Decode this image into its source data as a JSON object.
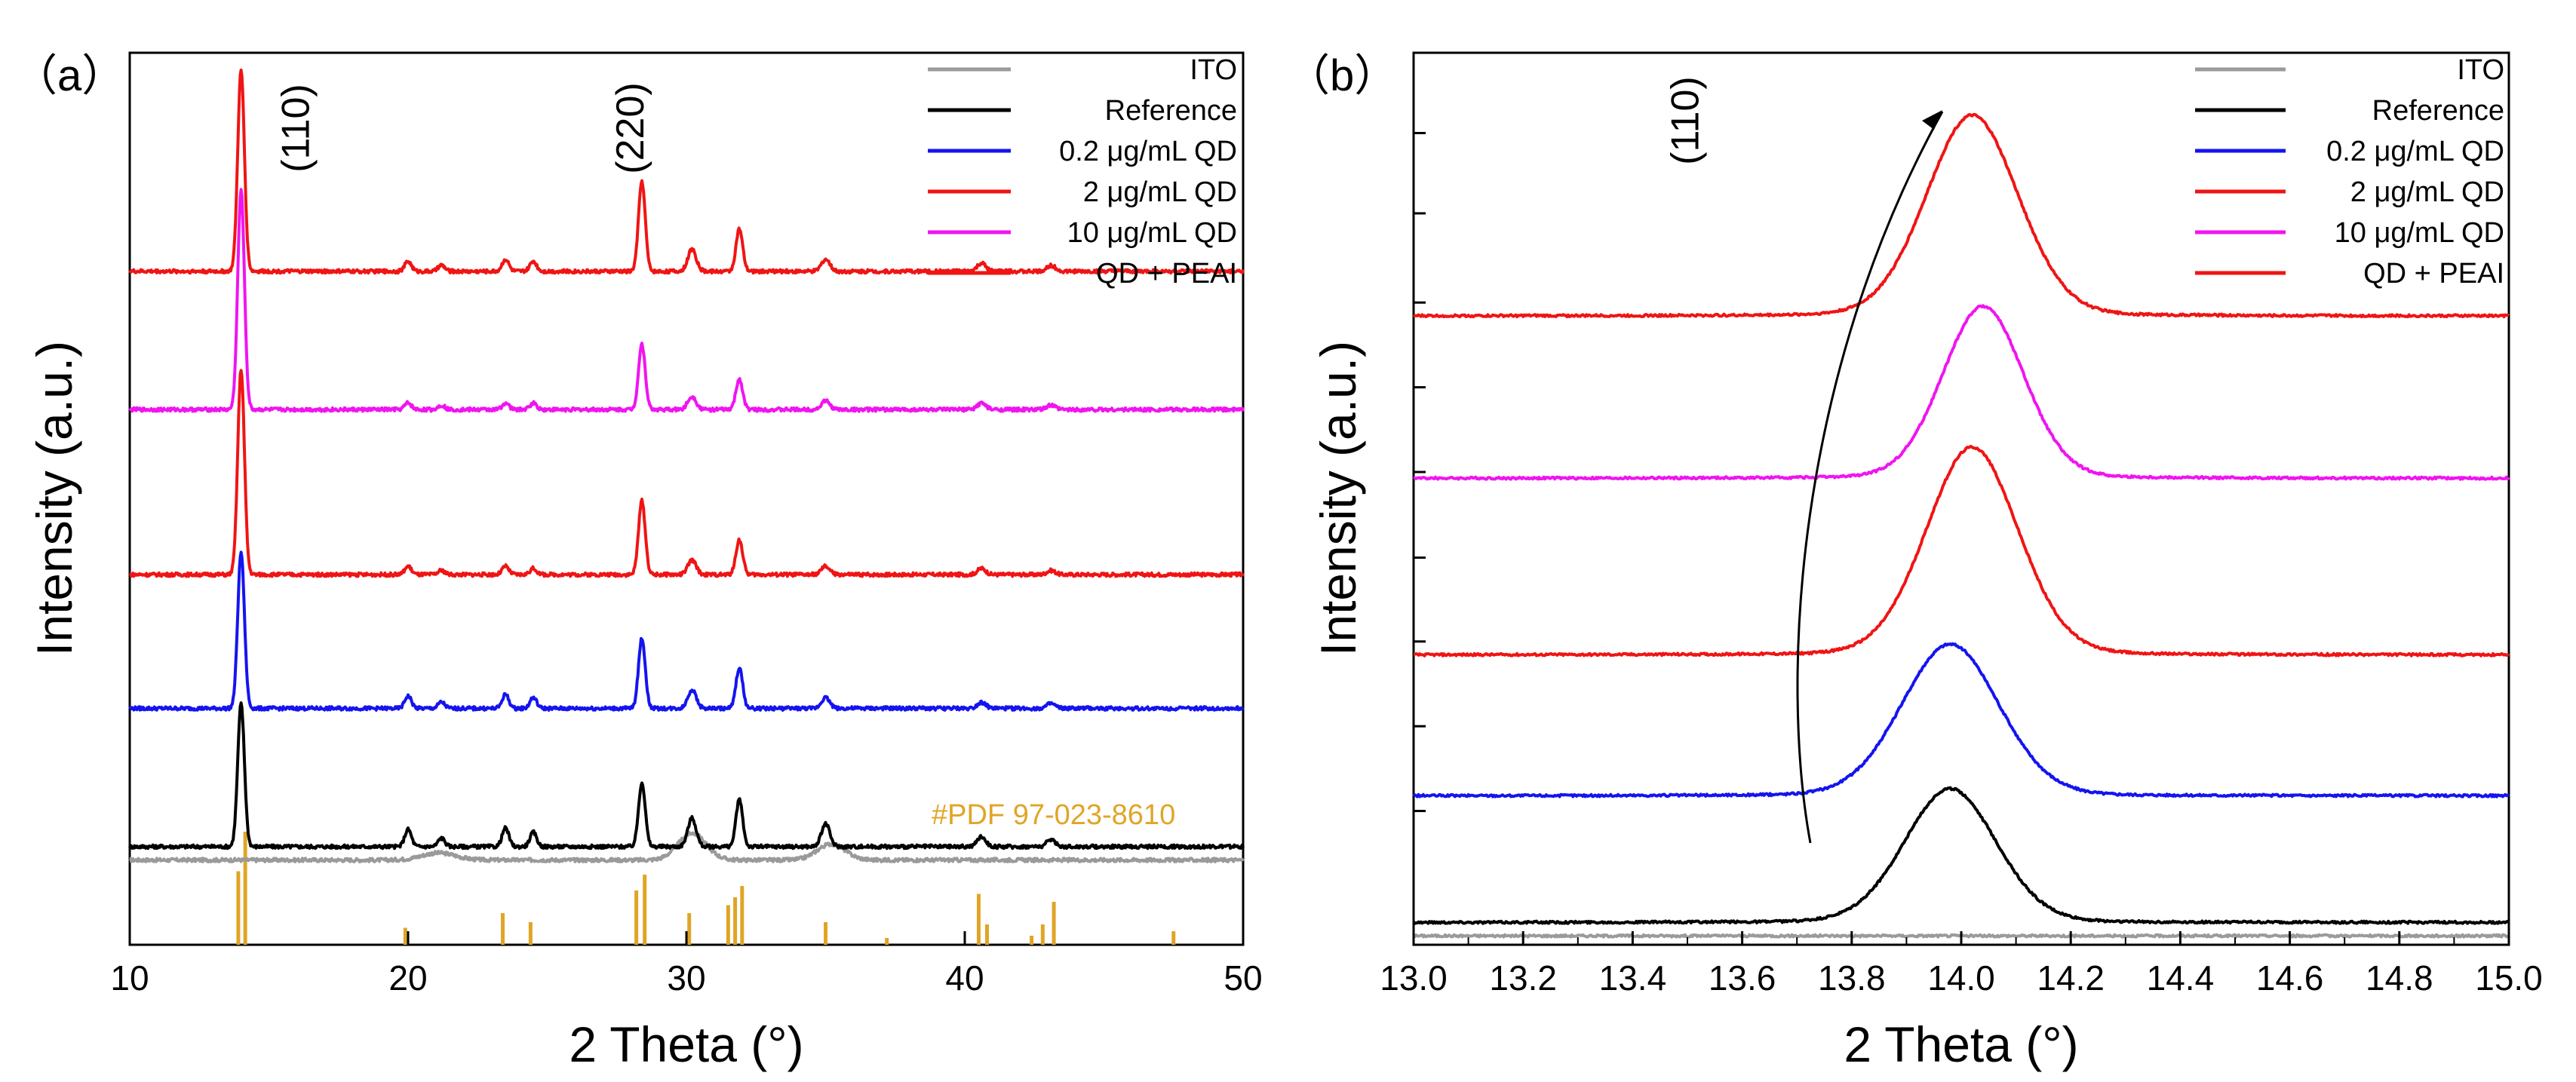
{
  "chart_data": [
    {
      "panel_label": "（a）",
      "type": "line",
      "xlabel": "2 Theta (°)",
      "ylabel": "Intensity (a.u.)",
      "xlim": [
        10,
        50
      ],
      "xticks": [
        "10",
        "20",
        "30",
        "40",
        "50"
      ],
      "yticks_labeled": false,
      "peak_labels": [
        {
          "text": "(110)",
          "x": 14.0
        },
        {
          "text": "(220)",
          "x": 28.4
        }
      ],
      "reference_pattern": {
        "label": "#PDF 97-023-8610",
        "color": "#e0a526",
        "sticks": [
          {
            "x": 13.9,
            "h": 0.65
          },
          {
            "x": 14.15,
            "h": 1.0
          },
          {
            "x": 19.9,
            "h": 0.15
          },
          {
            "x": 23.4,
            "h": 0.28
          },
          {
            "x": 24.4,
            "h": 0.2
          },
          {
            "x": 28.2,
            "h": 0.48
          },
          {
            "x": 28.5,
            "h": 0.62
          },
          {
            "x": 30.1,
            "h": 0.28
          },
          {
            "x": 31.5,
            "h": 0.35
          },
          {
            "x": 31.75,
            "h": 0.42
          },
          {
            "x": 32.0,
            "h": 0.52
          },
          {
            "x": 35.0,
            "h": 0.2
          },
          {
            "x": 37.2,
            "h": 0.06
          },
          {
            "x": 40.5,
            "h": 0.45
          },
          {
            "x": 40.8,
            "h": 0.18
          },
          {
            "x": 42.4,
            "h": 0.08
          },
          {
            "x": 42.8,
            "h": 0.18
          },
          {
            "x": 43.2,
            "h": 0.38
          },
          {
            "x": 47.5,
            "h": 0.12
          }
        ]
      },
      "series": [
        {
          "name": "ITO",
          "color": "#9a9a9a",
          "baseline": 0.095,
          "scale": 0.0,
          "peaks": [
            {
              "x": 21.1,
              "h": 0.008,
              "w": 0.6
            },
            {
              "x": 30.2,
              "h": 0.03,
              "w": 0.5
            },
            {
              "x": 35.2,
              "h": 0.018,
              "w": 0.5
            }
          ]
        },
        {
          "name": "Reference",
          "color": "#000000",
          "baseline": 0.11,
          "scale": 0.16,
          "peaks": [
            {
              "x": 14.0,
              "h": 1.0,
              "w": 0.12
            },
            {
              "x": 20.0,
              "h": 0.12,
              "w": 0.12
            },
            {
              "x": 21.2,
              "h": 0.06,
              "w": 0.12
            },
            {
              "x": 23.5,
              "h": 0.13,
              "w": 0.12
            },
            {
              "x": 24.5,
              "h": 0.1,
              "w": 0.12
            },
            {
              "x": 28.4,
              "h": 0.45,
              "w": 0.12
            },
            {
              "x": 30.2,
              "h": 0.2,
              "w": 0.15
            },
            {
              "x": 31.9,
              "h": 0.33,
              "w": 0.12
            },
            {
              "x": 35.0,
              "h": 0.16,
              "w": 0.15
            },
            {
              "x": 40.6,
              "h": 0.07,
              "w": 0.15
            },
            {
              "x": 43.1,
              "h": 0.05,
              "w": 0.15
            }
          ]
        },
        {
          "name": "0.2 μg/mL  QD",
          "color": "#1414f0",
          "baseline": 0.265,
          "scale": 0.175,
          "peaks": [
            {
              "x": 14.0,
              "h": 1.0,
              "w": 0.12
            },
            {
              "x": 20.0,
              "h": 0.08,
              "w": 0.12
            },
            {
              "x": 21.2,
              "h": 0.04,
              "w": 0.12
            },
            {
              "x": 23.5,
              "h": 0.09,
              "w": 0.12
            },
            {
              "x": 24.5,
              "h": 0.07,
              "w": 0.12
            },
            {
              "x": 28.4,
              "h": 0.45,
              "w": 0.12
            },
            {
              "x": 30.2,
              "h": 0.12,
              "w": 0.15
            },
            {
              "x": 31.9,
              "h": 0.26,
              "w": 0.12
            },
            {
              "x": 35.0,
              "h": 0.07,
              "w": 0.15
            },
            {
              "x": 40.6,
              "h": 0.04,
              "w": 0.15
            },
            {
              "x": 43.1,
              "h": 0.03,
              "w": 0.15
            }
          ]
        },
        {
          "name": "2 μg/mL    QD",
          "color": "#f01414",
          "baseline": 0.415,
          "scale": 0.23,
          "peaks": [
            {
              "x": 14.0,
              "h": 1.0,
              "w": 0.12
            },
            {
              "x": 20.0,
              "h": 0.04,
              "w": 0.12
            },
            {
              "x": 21.2,
              "h": 0.02,
              "w": 0.12
            },
            {
              "x": 23.5,
              "h": 0.04,
              "w": 0.12
            },
            {
              "x": 24.5,
              "h": 0.03,
              "w": 0.12
            },
            {
              "x": 28.4,
              "h": 0.36,
              "w": 0.12
            },
            {
              "x": 30.2,
              "h": 0.07,
              "w": 0.15
            },
            {
              "x": 31.9,
              "h": 0.17,
              "w": 0.12
            },
            {
              "x": 35.0,
              "h": 0.04,
              "w": 0.15
            },
            {
              "x": 40.6,
              "h": 0.03,
              "w": 0.15
            },
            {
              "x": 43.1,
              "h": 0.02,
              "w": 0.15
            }
          ]
        },
        {
          "name": "10 μg/mL   QD",
          "color": "#f014f0",
          "baseline": 0.6,
          "scale": 0.245,
          "peaks": [
            {
              "x": 14.0,
              "h": 1.0,
              "w": 0.12
            },
            {
              "x": 20.0,
              "h": 0.03,
              "w": 0.12
            },
            {
              "x": 21.2,
              "h": 0.02,
              "w": 0.12
            },
            {
              "x": 23.5,
              "h": 0.03,
              "w": 0.12
            },
            {
              "x": 24.5,
              "h": 0.03,
              "w": 0.12
            },
            {
              "x": 28.4,
              "h": 0.3,
              "w": 0.12
            },
            {
              "x": 30.2,
              "h": 0.06,
              "w": 0.15
            },
            {
              "x": 31.9,
              "h": 0.14,
              "w": 0.12
            },
            {
              "x": 35.0,
              "h": 0.04,
              "w": 0.15
            },
            {
              "x": 40.6,
              "h": 0.03,
              "w": 0.15
            },
            {
              "x": 43.1,
              "h": 0.02,
              "w": 0.15
            }
          ]
        },
        {
          "name": "QD + PEAI",
          "color": "#f01414",
          "baseline": 0.755,
          "scale": 0.225,
          "peaks": [
            {
              "x": 14.0,
              "h": 1.0,
              "w": 0.12
            },
            {
              "x": 20.0,
              "h": 0.05,
              "w": 0.12
            },
            {
              "x": 21.2,
              "h": 0.03,
              "w": 0.12
            },
            {
              "x": 23.5,
              "h": 0.06,
              "w": 0.12
            },
            {
              "x": 24.5,
              "h": 0.05,
              "w": 0.12
            },
            {
              "x": 28.4,
              "h": 0.45,
              "w": 0.12
            },
            {
              "x": 30.2,
              "h": 0.11,
              "w": 0.15
            },
            {
              "x": 31.9,
              "h": 0.21,
              "w": 0.12
            },
            {
              "x": 35.0,
              "h": 0.06,
              "w": 0.15
            },
            {
              "x": 40.6,
              "h": 0.04,
              "w": 0.15
            },
            {
              "x": 43.1,
              "h": 0.03,
              "w": 0.15
            }
          ]
        }
      ]
    },
    {
      "panel_label": "（b）",
      "type": "line",
      "xlabel": "2 Theta (°)",
      "ylabel": "Intensity (a.u.)",
      "xlim": [
        13.0,
        15.0
      ],
      "xticks": [
        "13.0",
        "13.2",
        "13.4",
        "13.6",
        "13.8",
        "14.0",
        "14.2",
        "14.4",
        "14.6",
        "14.8",
        "15.0"
      ],
      "yticks_labeled": false,
      "peak_labels": [
        {
          "text": "(110)",
          "x": 13.52
        }
      ],
      "annotation": "curved arrow showing (110) peak shift to higher angle",
      "series": [
        {
          "name": "ITO",
          "color": "#9a9a9a",
          "baseline": 0.01,
          "peak_x": 14.0,
          "height": 0.0,
          "width": 0.1
        },
        {
          "name": "Reference",
          "color": "#000000",
          "baseline": 0.025,
          "peak_x": 13.98,
          "height": 0.15,
          "width": 0.085
        },
        {
          "name": "0.2 μg/mL  QD",
          "color": "#1414f0",
          "baseline": 0.167,
          "peak_x": 13.98,
          "height": 0.17,
          "width": 0.09
        },
        {
          "name": "2 μg/mL    QD",
          "color": "#f01414",
          "baseline": 0.325,
          "peak_x": 14.02,
          "height": 0.233,
          "width": 0.085
        },
        {
          "name": "10 μg/mL   QD",
          "color": "#f014f0",
          "baseline": 0.523,
          "peak_x": 14.04,
          "height": 0.193,
          "width": 0.075
        },
        {
          "name": "QD + PEAI",
          "color": "#f01414",
          "baseline": 0.705,
          "peak_x": 14.02,
          "height": 0.225,
          "width": 0.085
        }
      ]
    }
  ]
}
